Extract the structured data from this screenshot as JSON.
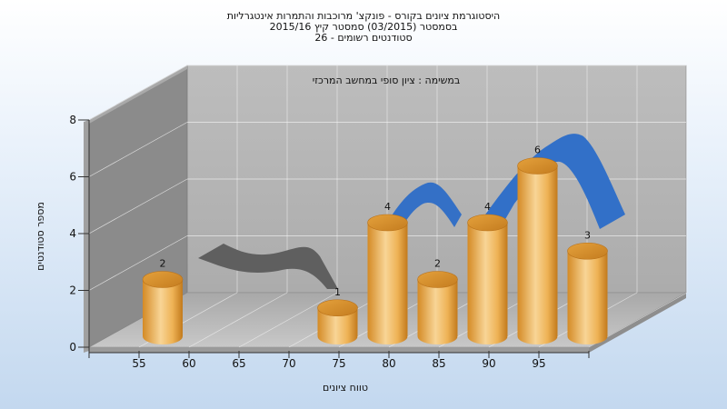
{
  "title_lines": [
    "היסטוגרמת ציונים בקורס - פונקצ' מרוכבות והתמרות אינטגרליות",
    "בסמסטר  (03/2015)  סמסטר קיץ  2015/16",
    "סטודנטים רשומים - 26"
  ],
  "chart_data": {
    "type": "bar",
    "subtitle": "במשימה : ציון סופי במחשב המרכזי",
    "xlabel": "טווח ציונים",
    "ylabel": "מספר סטודנטים",
    "x_ticks": [
      "55",
      "60",
      "65",
      "70",
      "75",
      "80",
      "85",
      "90",
      "95"
    ],
    "y_ticks": [
      "0",
      "2",
      "4",
      "6",
      "8"
    ],
    "ylim": [
      0,
      8
    ],
    "bars": [
      {
        "x": 55,
        "value": 2
      },
      {
        "x": 72.5,
        "value": 1
      },
      {
        "x": 77.5,
        "value": 4
      },
      {
        "x": 82.5,
        "value": 2
      },
      {
        "x": 87.5,
        "value": 4
      },
      {
        "x": 92.5,
        "value": 6
      },
      {
        "x": 97.5,
        "value": 3
      }
    ],
    "grid": true,
    "colors": {
      "bar": "#e9a63e",
      "bar_light": "#f7d089",
      "curve_front": "#3270c8",
      "curve_back": "#5e5e5e",
      "wall": "#b4b4b4",
      "side_wall": "#8a8a8a"
    }
  }
}
